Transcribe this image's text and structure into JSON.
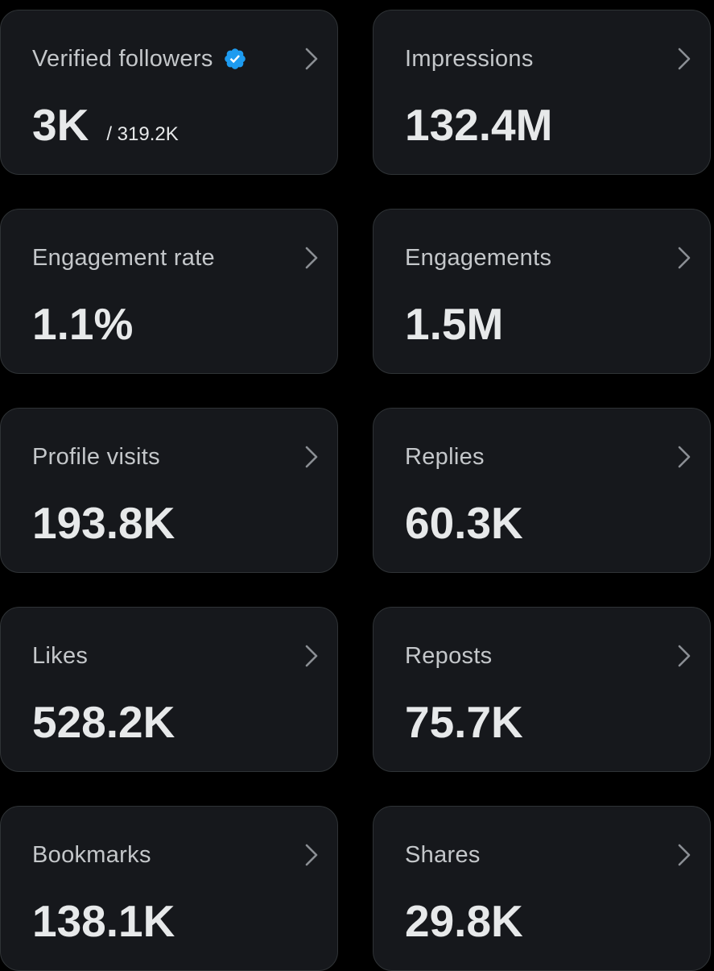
{
  "metrics": [
    {
      "label": "Verified followers",
      "value": "3K",
      "subvalue": "/ 319.2K",
      "icon": "verified-badge-icon"
    },
    {
      "label": "Impressions",
      "value": "132.4M"
    },
    {
      "label": "Engagement rate",
      "value": "1.1%"
    },
    {
      "label": "Engagements",
      "value": "1.5M"
    },
    {
      "label": "Profile visits",
      "value": "193.8K"
    },
    {
      "label": "Replies",
      "value": "60.3K"
    },
    {
      "label": "Likes",
      "value": "528.2K"
    },
    {
      "label": "Reposts",
      "value": "75.7K"
    },
    {
      "label": "Bookmarks",
      "value": "138.1K"
    },
    {
      "label": "Shares",
      "value": "29.8K"
    }
  ],
  "colors": {
    "background": "#000000",
    "card": "#16181c",
    "border": "#2f3336",
    "label": "#c4c7ca",
    "value": "#e7e9ea",
    "verified": "#1d9bf0",
    "chevron": "#8b8f94"
  }
}
